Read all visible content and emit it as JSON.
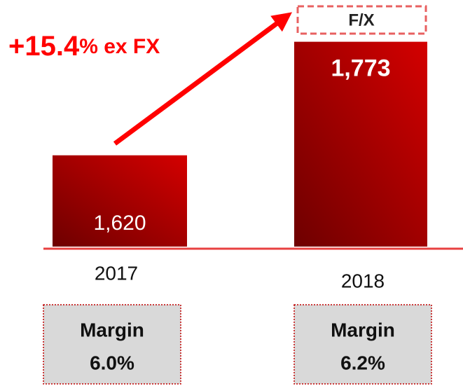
{
  "chart_data": {
    "type": "bar",
    "categories": [
      "2017",
      "2018"
    ],
    "values": [
      1620,
      1773
    ],
    "value_labels": [
      "1,620",
      "1,773"
    ],
    "color": "#c00000",
    "ylim": [
      1497,
      1800
    ],
    "growth_annotation": [
      "+15.4",
      "% ex FX"
    ],
    "fx_label": "F/X",
    "margin_label": "Margin",
    "margins": [
      "6.0%",
      "6.2%"
    ]
  }
}
